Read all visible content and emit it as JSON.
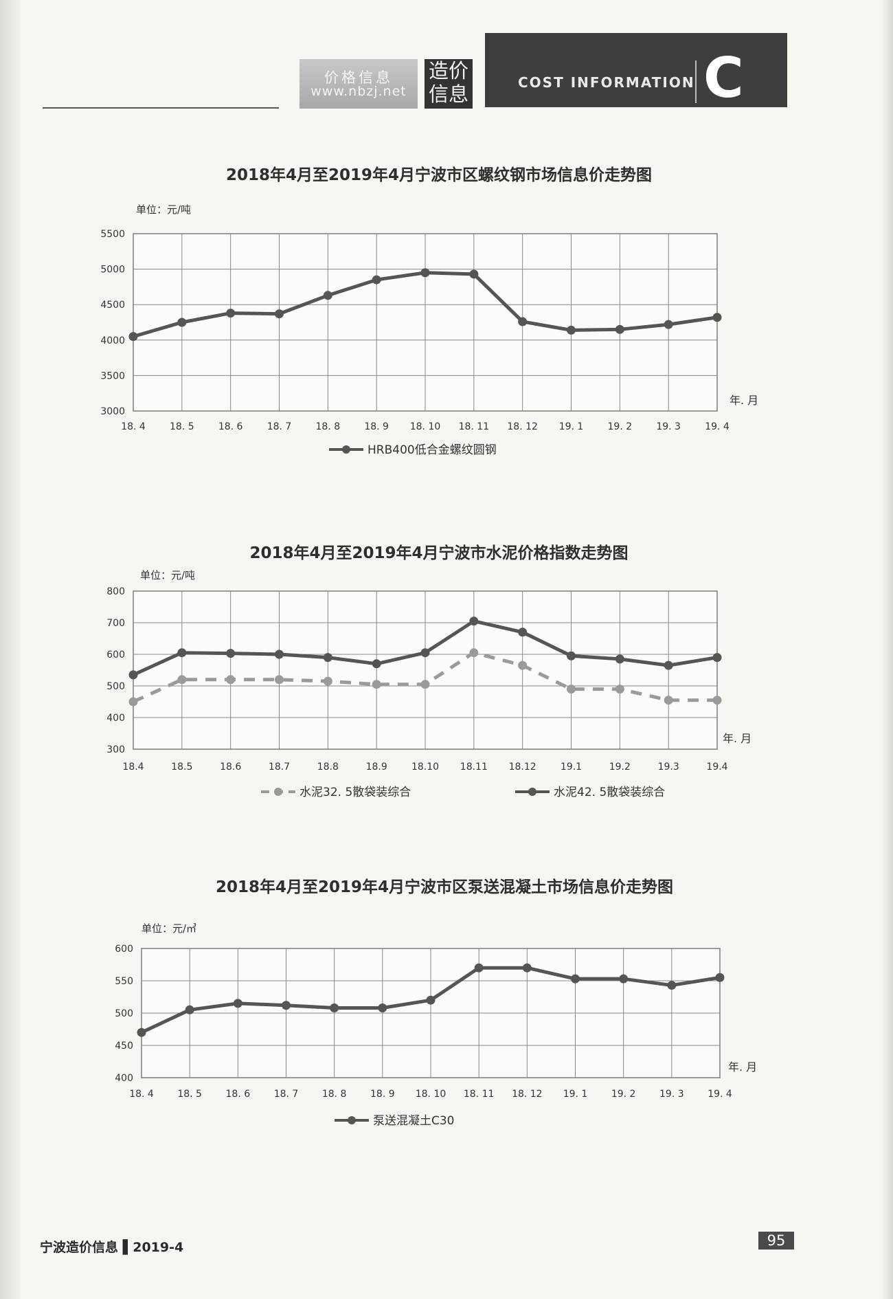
{
  "header": {
    "site_line1": "价格信息",
    "site_line2": "www.nbzj.net",
    "brand_line1": "造价",
    "brand_line2": "信息",
    "banner_text": "COST INFORMATION",
    "banner_letter": "C"
  },
  "footer": {
    "publication": "宁波造价信息 ▌2019-4",
    "page_number": "95"
  },
  "chart_data": [
    {
      "type": "line",
      "title": "2018年4月至2019年4月宁波市区螺纹钢市场信息价走势图",
      "unit": "单位：元/吨",
      "xlabel": "年. 月",
      "categories": [
        "18. 4",
        "18. 5",
        "18. 6",
        "18. 7",
        "18. 8",
        "18. 9",
        "18. 10",
        "18. 11",
        "18. 12",
        "19. 1",
        "19. 2",
        "19. 3",
        "19. 4"
      ],
      "ylim": [
        3000,
        5500
      ],
      "yticks": [
        3000,
        3500,
        4000,
        4500,
        5000,
        5500
      ],
      "grid": true,
      "legend_position": "bottom",
      "series": [
        {
          "name": "HRB400低合金螺纹圆钢",
          "color": "#555555",
          "dashed": false,
          "values": [
            4050,
            4250,
            4380,
            4370,
            4630,
            4850,
            4950,
            4930,
            4260,
            4140,
            4150,
            4220,
            4320
          ]
        }
      ]
    },
    {
      "type": "line",
      "title": "2018年4月至2019年4月宁波市水泥价格指数走势图",
      "unit": "单位：元/吨",
      "xlabel": "年. 月",
      "categories": [
        "18.4",
        "18.5",
        "18.6",
        "18.7",
        "18.8",
        "18.9",
        "18.10",
        "18.11",
        "18.12",
        "19.1",
        "19.2",
        "19.3",
        "19.4"
      ],
      "ylim": [
        300,
        800
      ],
      "yticks": [
        300,
        400,
        500,
        600,
        700,
        800
      ],
      "grid": true,
      "legend_position": "bottom",
      "series": [
        {
          "name": "水泥32. 5散袋装综合",
          "color": "#9a9a9a",
          "dashed": true,
          "values": [
            450,
            520,
            520,
            520,
            515,
            505,
            505,
            605,
            565,
            490,
            490,
            455,
            455
          ]
        },
        {
          "name": "水泥42. 5散袋装综合",
          "color": "#555555",
          "dashed": false,
          "values": [
            535,
            605,
            603,
            600,
            590,
            570,
            605,
            705,
            670,
            595,
            585,
            565,
            590
          ]
        }
      ]
    },
    {
      "type": "line",
      "title": "2018年4月至2019年4月宁波市区泵送混凝土市场信息价走势图",
      "unit": "单位：元/㎥",
      "xlabel": "年. 月",
      "categories": [
        "18. 4",
        "18. 5",
        "18. 6",
        "18. 7",
        "18. 8",
        "18. 9",
        "18. 10",
        "18. 11",
        "18. 12",
        "19. 1",
        "19. 2",
        "19. 3",
        "19. 4"
      ],
      "ylim": [
        400,
        600
      ],
      "yticks": [
        400,
        450,
        500,
        550,
        600
      ],
      "grid": true,
      "legend_position": "bottom",
      "series": [
        {
          "name": "泵送混凝土C30",
          "color": "#555555",
          "dashed": false,
          "values": [
            470,
            505,
            515,
            512,
            508,
            508,
            520,
            570,
            570,
            553,
            553,
            543,
            555
          ]
        }
      ]
    }
  ]
}
